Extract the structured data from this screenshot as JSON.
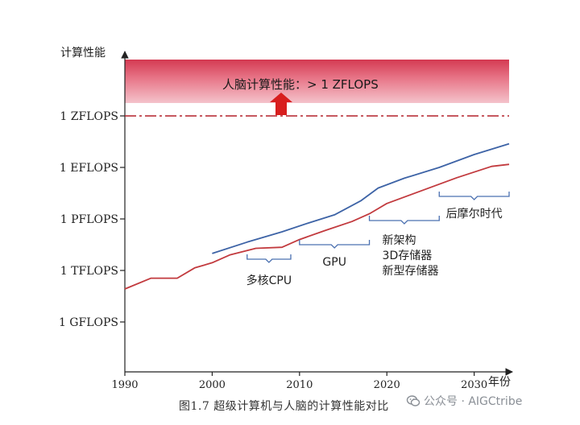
{
  "chart_data": {
    "type": "line",
    "title": "",
    "ylabel": "计算性能",
    "xlabel": "年份",
    "x_ticks": [
      1990,
      2000,
      2010,
      2020,
      2030
    ],
    "xlim": [
      1990,
      2034
    ],
    "y_tick_labels": [
      "1 GFLOPS",
      "1 TFLOPS",
      "1 PFLOPS",
      "1 EFLOPS",
      "1 ZFLOPS"
    ],
    "y_tick_levels": [
      0,
      1,
      2,
      3,
      4
    ],
    "y_scale": "log (each tick ×1000)",
    "grid": false,
    "series": [
      {
        "color": "#c23a3e",
        "x": [
          1990,
          1993,
          1996,
          1998,
          2000,
          2002,
          2005,
          2008,
          2010,
          2013,
          2016,
          2018,
          2020,
          2024,
          2028,
          2032,
          2034
        ],
        "y": [
          0.64,
          0.85,
          0.85,
          1.05,
          1.15,
          1.3,
          1.43,
          1.45,
          1.6,
          1.78,
          1.95,
          2.1,
          2.3,
          2.55,
          2.8,
          3.02,
          3.06
        ]
      },
      {
        "color": "#3d63a6",
        "x": [
          2000,
          2004,
          2008,
          2011,
          2014,
          2017,
          2019,
          2022,
          2026,
          2030,
          2034
        ],
        "y": [
          1.33,
          1.55,
          1.75,
          1.92,
          2.08,
          2.35,
          2.6,
          2.79,
          3.0,
          3.25,
          3.46
        ]
      }
    ],
    "reference_line": {
      "level": 4,
      "label": "1 ZFLOPS",
      "style": "dash-dot",
      "color": "#b3202a"
    },
    "brain_band": {
      "label": "人脑计算性能：> 1 ZFLOPS",
      "color": "#dc4a5c"
    },
    "annotations": [
      {
        "label": "多核CPU",
        "x_range": [
          2004,
          2009
        ]
      },
      {
        "label": "GPU",
        "x_range": [
          2010,
          2018
        ]
      },
      {
        "label": "新架构",
        "x_range": [
          2018,
          2026
        ]
      },
      {
        "label": "3D存储器",
        "x_range": [
          2018,
          2026
        ]
      },
      {
        "label": "新型存储器",
        "x_range": [
          2018,
          2026
        ]
      },
      {
        "label": "后摩尔时代",
        "x_range": [
          2026,
          2034
        ]
      }
    ]
  },
  "caption": "图1.7  超级计算机与人脑的计算性能对比",
  "watermark": {
    "text": "公众号 · AIGCtribe",
    "icon": "wechat-icon"
  }
}
